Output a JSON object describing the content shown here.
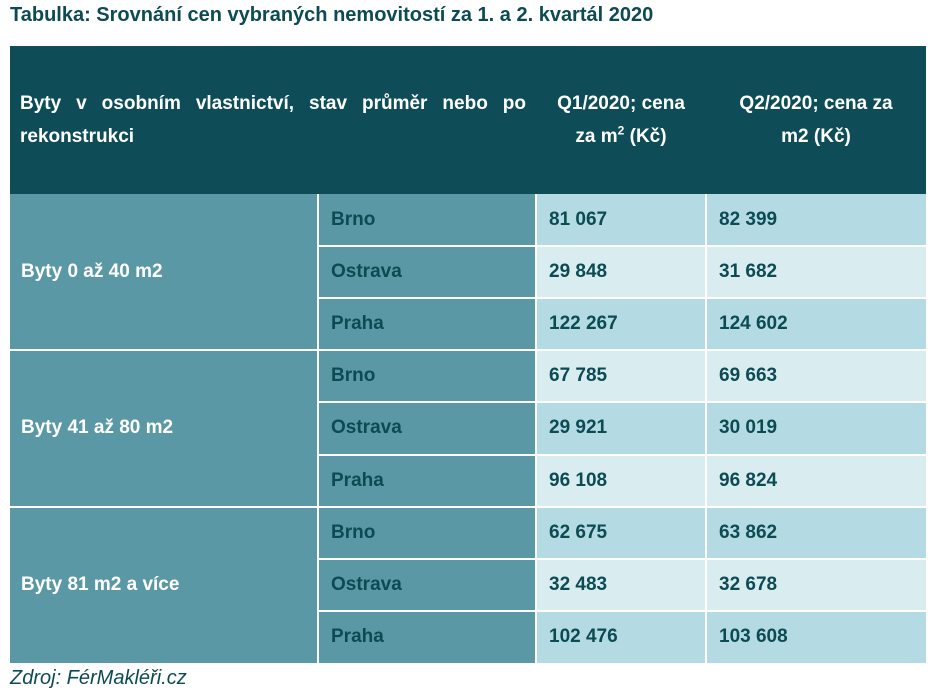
{
  "title": "Tabulka: Srovnání cen vybraných nemovitostí za 1. a 2. kvartál 2020",
  "table": {
    "header": {
      "col1": "Byty v osobním vlastnictví, stav průměr nebo po rekonstrukci",
      "col2_part1": "Q1/2020; cena",
      "col2_part2a": "za m",
      "col2_sup": "2",
      "col2_part2b": " (Kč)",
      "col3_part1": "Q2/2020; cena za",
      "col3_part2": "m2 (Kč)"
    },
    "groups": [
      {
        "label": "Byty 0 až 40 m2",
        "rows": [
          {
            "city": "Brno",
            "q1": "81 067",
            "q2": "82 399"
          },
          {
            "city": "Ostrava",
            "q1": "29 848",
            "q2": "31 682"
          },
          {
            "city": "Praha",
            "q1": "122 267",
            "q2": "124 602"
          }
        ]
      },
      {
        "label": "Byty 41 až 80 m2",
        "rows": [
          {
            "city": "Brno",
            "q1": "67 785",
            "q2": "69 663"
          },
          {
            "city": "Ostrava",
            "q1": "29 921",
            "q2": "30 019"
          },
          {
            "city": "Praha",
            "q1": "96 108",
            "q2": "96 824"
          }
        ]
      },
      {
        "label": "Byty 81 m2 a více",
        "rows": [
          {
            "city": "Brno",
            "q1": "62 675",
            "q2": "63 862"
          },
          {
            "city": "Ostrava",
            "q1": "32 483",
            "q2": "32 678"
          },
          {
            "city": "Praha",
            "q1": "102 476",
            "q2": "103 608"
          }
        ]
      }
    ]
  },
  "source": "Zdroj: FérMakléři.cz",
  "colors": {
    "header_bg": "#0e4d57",
    "group_bg": "#5a98a5",
    "value_dark": "#b4dbe3",
    "value_light": "#d9edf1",
    "text_dark": "#0c4b53"
  }
}
